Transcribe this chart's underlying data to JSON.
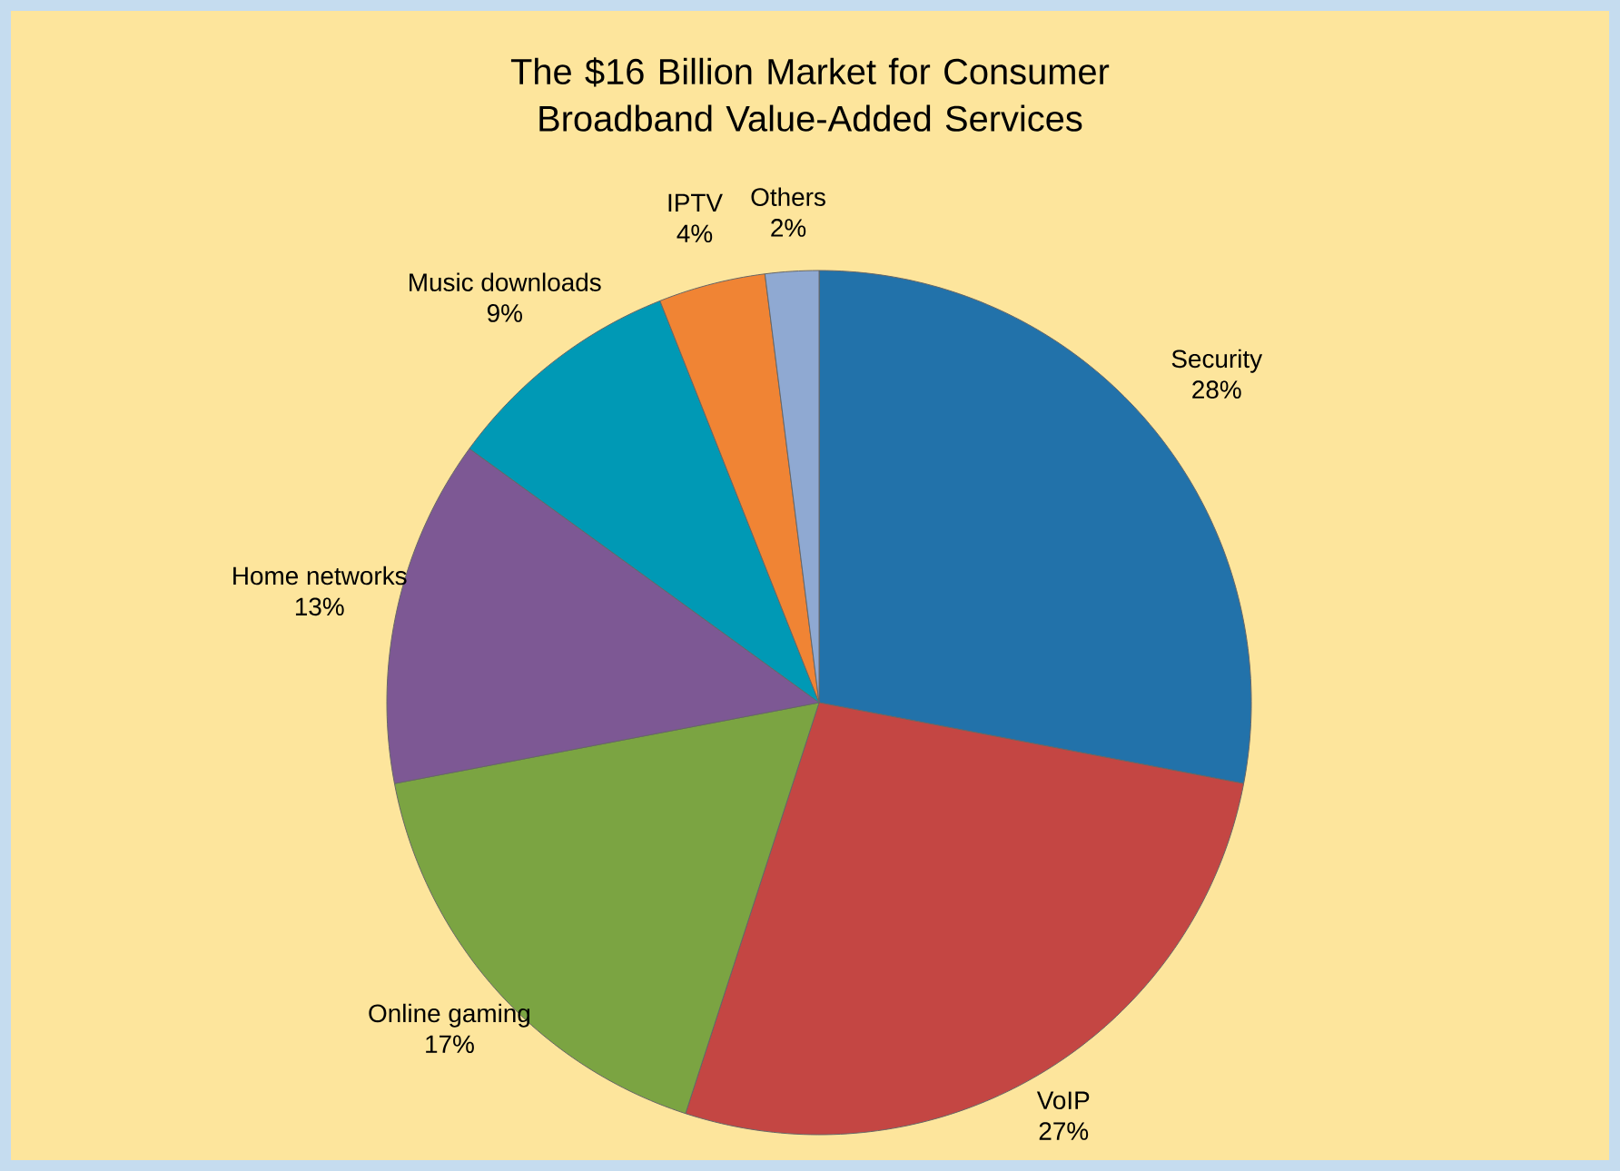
{
  "chart_data": {
    "type": "pie",
    "title": "The $16 Billion Market for Consumer Broadband Value-Added Services",
    "categories": [
      "Security",
      "VoIP",
      "Online gaming",
      "Home networks",
      "Music downloads",
      "IPTV",
      "Others"
    ],
    "values": [
      28,
      27,
      17,
      13,
      9,
      4,
      2
    ],
    "colors": [
      "#2272aa",
      "#c44643",
      "#7ba442",
      "#7d5894",
      "#0099b5",
      "#f08434",
      "#8fa9d2"
    ],
    "value_labels": [
      "28%",
      "27%",
      "17%",
      "13%",
      "9%",
      "4%",
      "2%"
    ]
  }
}
